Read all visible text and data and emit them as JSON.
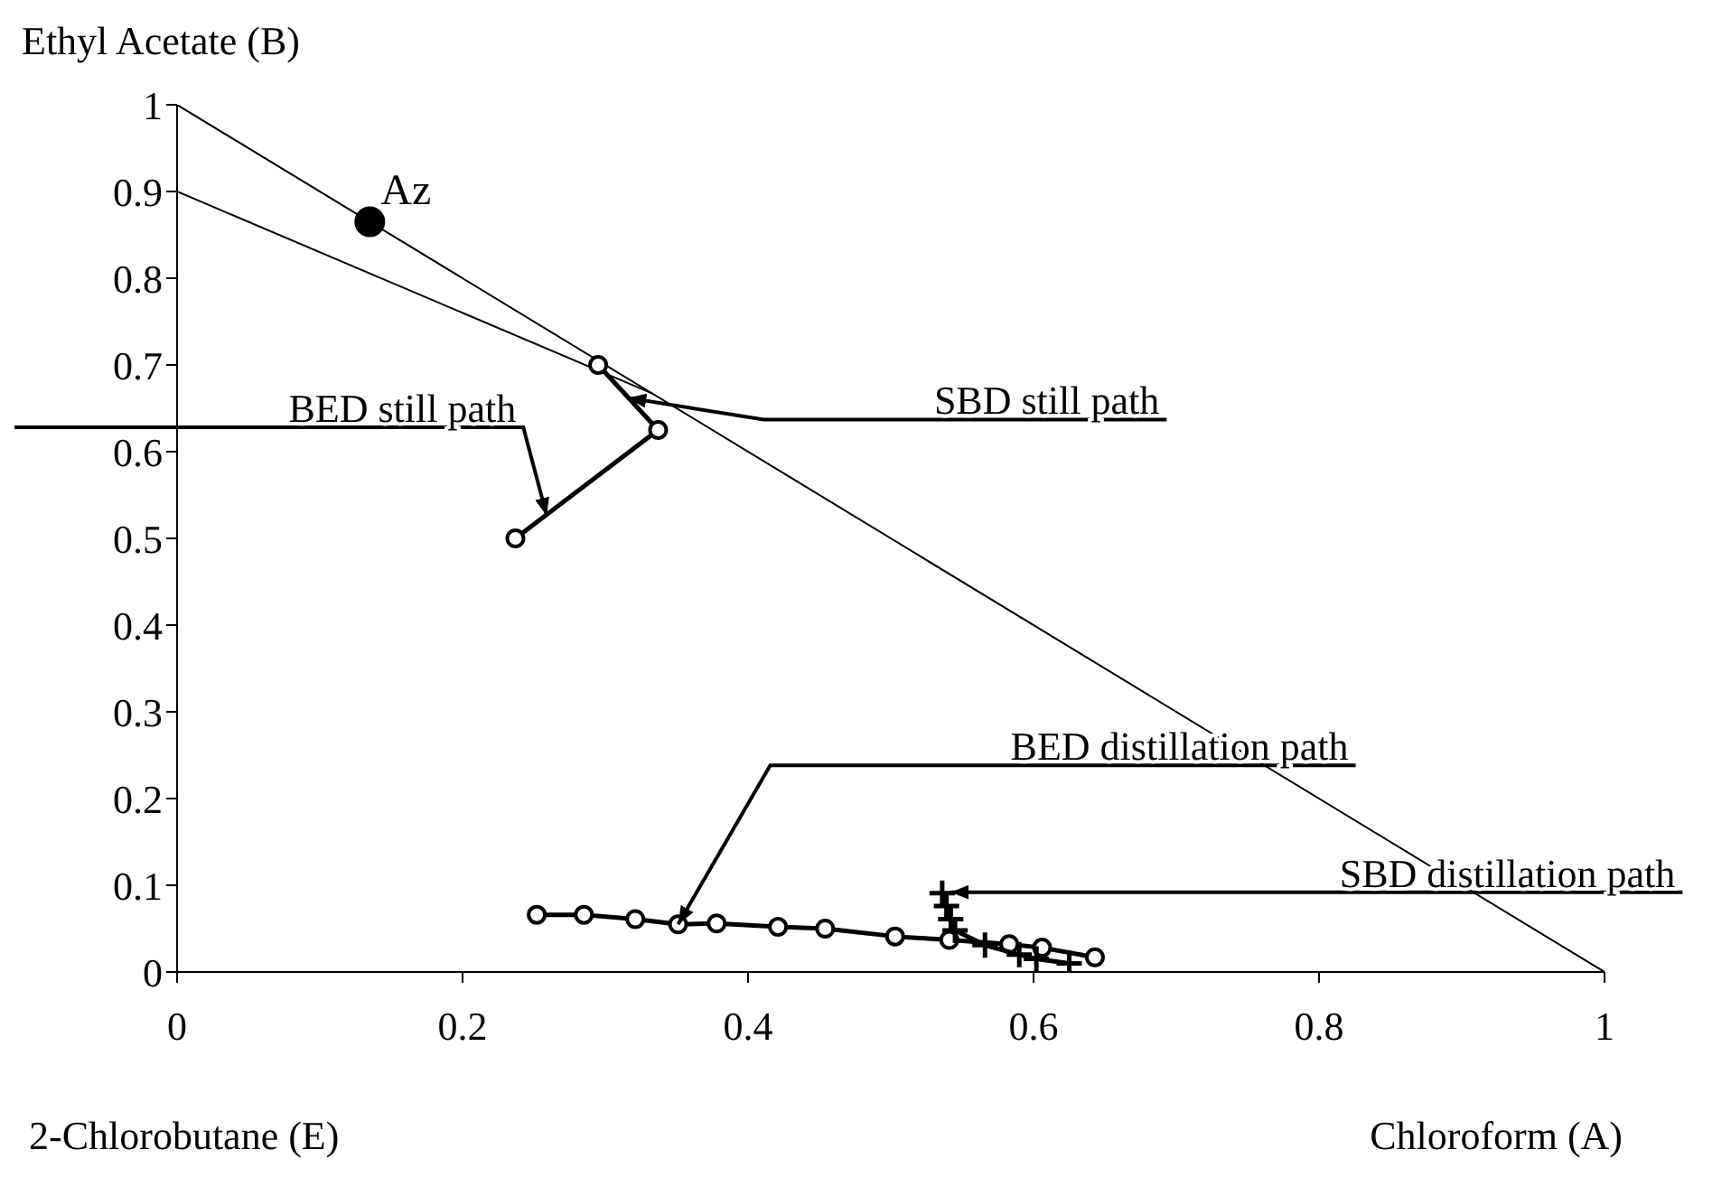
{
  "chart_data": {
    "type": "line",
    "ylabel": "Ethyl Acetate (B)",
    "xlabel": "Chloroform (A)",
    "xlim": [
      0,
      1
    ],
    "xticks": [
      0,
      0.2,
      0.4,
      0.6,
      0.8,
      1
    ],
    "ylim": [
      0,
      1
    ],
    "yticks": [
      0,
      0.1,
      0.2,
      0.3,
      0.4,
      0.5,
      0.6,
      0.7,
      0.8,
      0.9,
      1
    ],
    "grid": false,
    "legend": false,
    "series": [
      {
        "marker": "none",
        "color": "#000000",
        "x": [
          0,
          1
        ],
        "values": [
          1,
          0
        ]
      },
      {
        "marker": "none",
        "color": "#000000",
        "x": [
          0,
          0.333
        ],
        "values": [
          0.9,
          0.667
        ]
      },
      {
        "type": "scatter",
        "marker": "circle",
        "color": "#000000",
        "x": [
          0.135
        ],
        "values": [
          0.865
        ]
      },
      {
        "marker": "circle",
        "color": "#000000",
        "x": [
          0.295,
          0.337,
          0.237
        ],
        "values": [
          0.7,
          0.625,
          0.5
        ]
      },
      {
        "marker": "circle",
        "color": "#000000",
        "x": [
          0.252,
          0.285,
          0.321,
          0.351,
          0.378,
          0.421,
          0.454,
          0.503,
          0.541,
          0.583,
          0.606,
          0.643
        ],
        "values": [
          0.066,
          0.066,
          0.061,
          0.055,
          0.056,
          0.052,
          0.05,
          0.041,
          0.037,
          0.032,
          0.028,
          0.017
        ]
      },
      {
        "marker": "cross",
        "color": "#000000",
        "x": [
          0.536,
          0.539,
          0.542,
          0.545,
          0.566,
          0.59,
          0.602,
          0.625
        ],
        "values": [
          0.091,
          0.076,
          0.061,
          0.048,
          0.031,
          0.02,
          0.015,
          0.01
        ]
      }
    ],
    "annotations": [
      {
        "text": "Az",
        "x": 0.135,
        "y": 0.865
      },
      {
        "text": "BED still path",
        "x": 0.259,
        "y": 0.526
      },
      {
        "text": "SBD still path",
        "x": 0.316,
        "y": 0.662
      },
      {
        "text": "BED distillation path",
        "x": 0.351,
        "y": 0.055
      },
      {
        "text": "SBD distillation path",
        "x": 0.542,
        "y": 0.092
      },
      "2-Chlorobutane (E)"
    ]
  }
}
